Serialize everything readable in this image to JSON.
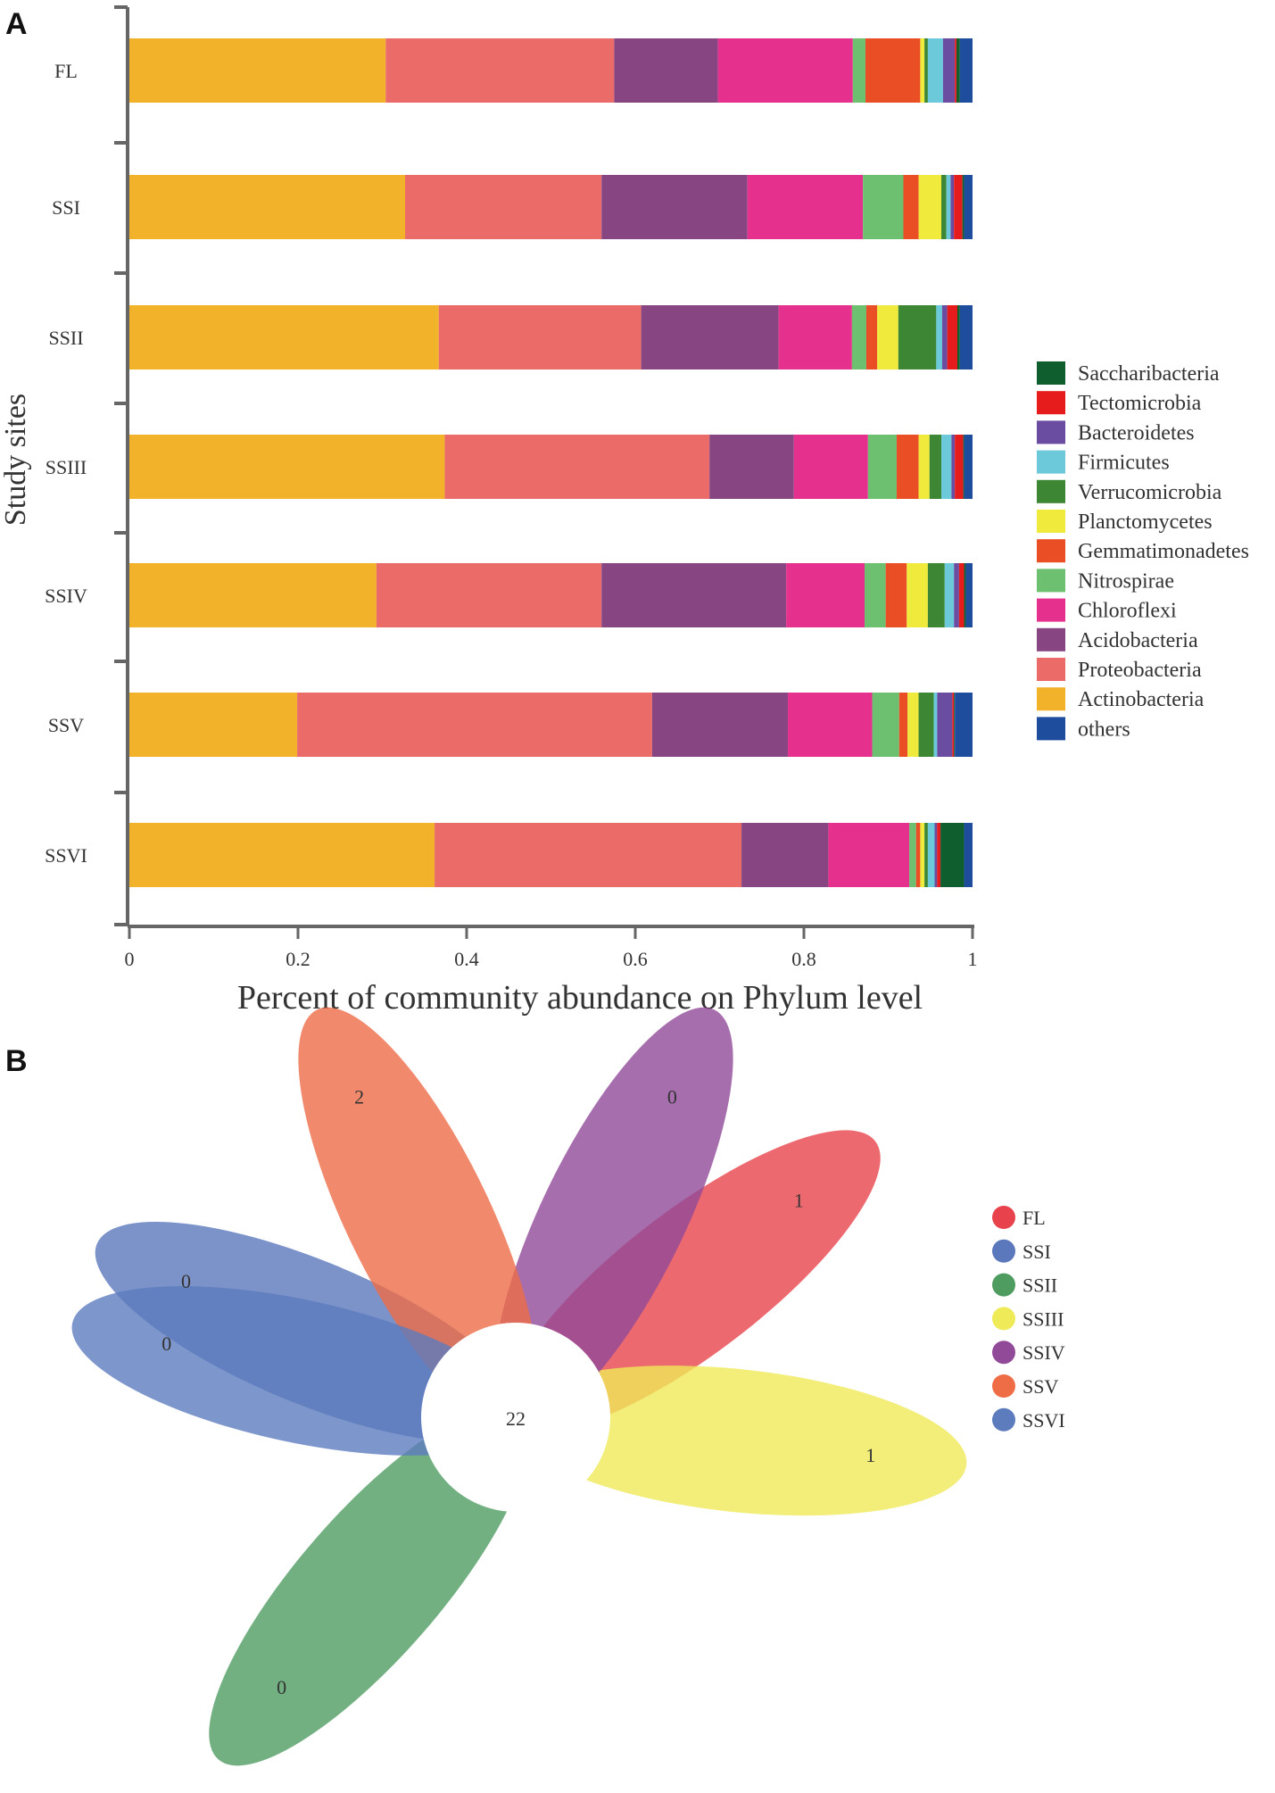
{
  "panel_labels": {
    "a": "A",
    "b": "B"
  },
  "chart_data": [
    {
      "type": "bar",
      "orientation": "horizontal",
      "stacked": true,
      "panel": "A",
      "ylabel": "Study sites",
      "xlabel": "Percent of community abundance on Phylum level",
      "xlim": [
        0,
        1
      ],
      "xticks": [
        "0",
        "0.2",
        "0.4",
        "0.6",
        "0.8",
        "1"
      ],
      "categories": [
        "FL",
        "SSI",
        "SSII",
        "SSIII",
        "SSIV",
        "SSV",
        "SSVI"
      ],
      "legend_order": [
        "Saccharibacteria",
        "Tectomicrobia",
        "Bacteroidetes",
        "Firmicutes",
        "Verrucomicrobia",
        "Planctomycetes",
        "Gemmatimonadetes",
        "Nitrospirae",
        "Chloroflexi",
        "Acidobacteria",
        "Proteobacteria",
        "Actinobacteria",
        "others"
      ],
      "legend_position": "right",
      "series": [
        {
          "name": "Actinobacteria",
          "color": "#F2B22A",
          "values": [
            0.304,
            0.327,
            0.367,
            0.374,
            0.293,
            0.199,
            0.362
          ]
        },
        {
          "name": "Proteobacteria",
          "color": "#EB6B69",
          "values": [
            0.271,
            0.233,
            0.24,
            0.314,
            0.267,
            0.421,
            0.364
          ]
        },
        {
          "name": "Acidobacteria",
          "color": "#874682",
          "values": [
            0.123,
            0.173,
            0.163,
            0.1,
            0.219,
            0.161,
            0.103
          ]
        },
        {
          "name": "Chloroflexi",
          "color": "#E6308E",
          "values": [
            0.16,
            0.137,
            0.087,
            0.088,
            0.093,
            0.1,
            0.096
          ]
        },
        {
          "name": "Nitrospirae",
          "color": "#6CC070",
          "values": [
            0.015,
            0.048,
            0.017,
            0.034,
            0.025,
            0.032,
            0.008
          ]
        },
        {
          "name": "Gemmatimonadetes",
          "color": "#E94E24",
          "values": [
            0.065,
            0.018,
            0.013,
            0.026,
            0.025,
            0.01,
            0.005
          ]
        },
        {
          "name": "Planctomycetes",
          "color": "#EFEA3C",
          "values": [
            0.005,
            0.027,
            0.025,
            0.013,
            0.025,
            0.013,
            0.005
          ]
        },
        {
          "name": "Verrucomicrobia",
          "color": "#3D8734",
          "values": [
            0.004,
            0.006,
            0.045,
            0.014,
            0.02,
            0.018,
            0.004
          ]
        },
        {
          "name": "Firmicutes",
          "color": "#6BC9D9",
          "values": [
            0.018,
            0.005,
            0.007,
            0.012,
            0.011,
            0.004,
            0.008
          ]
        },
        {
          "name": "Bacteroidetes",
          "color": "#6A4CA0",
          "values": [
            0.014,
            0.004,
            0.006,
            0.004,
            0.006,
            0.018,
            0.003
          ]
        },
        {
          "name": "Tectomicrobia",
          "color": "#E51B1C",
          "values": [
            0.002,
            0.01,
            0.012,
            0.01,
            0.006,
            0.002,
            0.004
          ]
        },
        {
          "name": "Saccharibacteria",
          "color": "#0E5E2E",
          "values": [
            0.004,
            0.002,
            0.003,
            0.001,
            0.002,
            0.001,
            0.028
          ]
        },
        {
          "name": "others",
          "color": "#1F4D9E",
          "values": [
            0.015,
            0.01,
            0.015,
            0.01,
            0.008,
            0.021,
            0.01
          ]
        }
      ]
    },
    {
      "type": "venn",
      "panel": "B",
      "core_value": "22",
      "petals": [
        {
          "name": "FL",
          "color": "#E8434C",
          "value": "1",
          "angle": 37.5
        },
        {
          "name": "SSI",
          "color": "#5A78BB",
          "value": "0",
          "angle": 157.5
        },
        {
          "name": "SSII",
          "color": "#4F9C61",
          "value": "0",
          "angle": 229
        },
        {
          "name": "SSIII",
          "color": "#EFEA57",
          "value": "1",
          "angle": -6
        },
        {
          "name": "SSIV",
          "color": "#914A98",
          "value": "0",
          "angle": 64
        },
        {
          "name": "SSV",
          "color": "#EE6D47",
          "value": "2",
          "angle": 116
        },
        {
          "name": "SSVI",
          "color": "#5C7CBE",
          "value": "0",
          "angle": 168
        }
      ]
    }
  ]
}
